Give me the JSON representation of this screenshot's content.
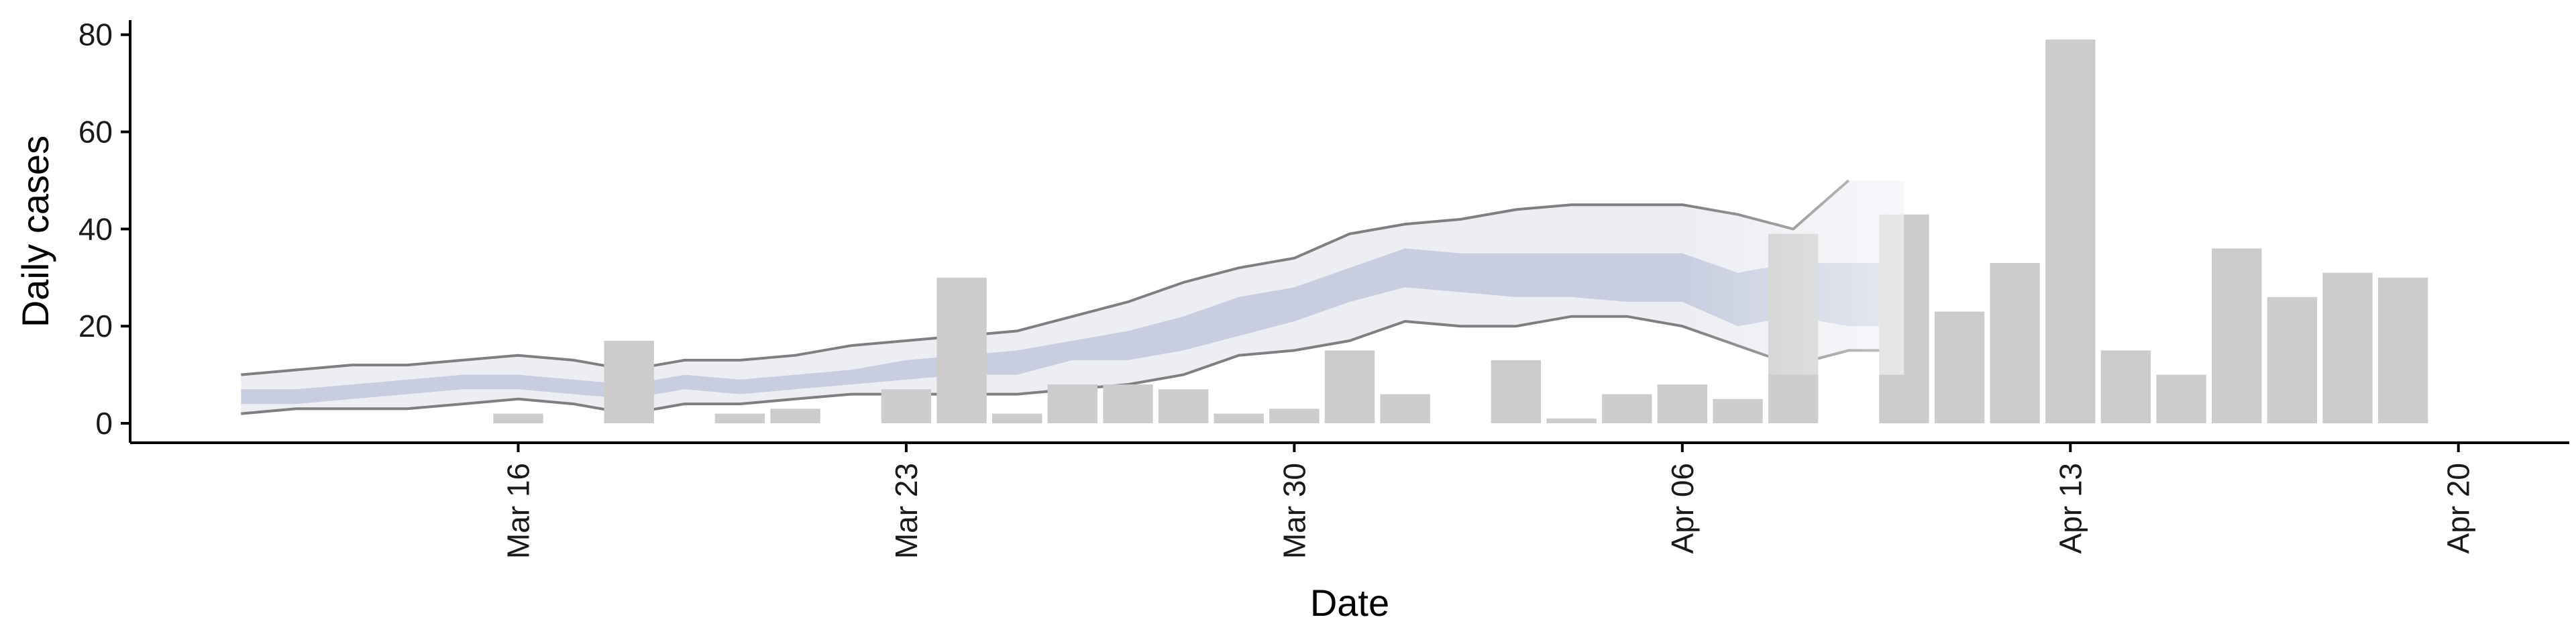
{
  "chart_data": {
    "type": "bar",
    "title": "",
    "xlabel": "Date",
    "ylabel": "Daily cases",
    "ylim": [
      -4,
      83
    ],
    "xlim": [
      "2020-03-09",
      "2020-04-22"
    ],
    "grid": false,
    "legend": "none",
    "y_ticks": [
      0,
      20,
      40,
      60,
      80
    ],
    "x_ticks": [
      {
        "date": "2020-03-16",
        "label": "Mar 16"
      },
      {
        "date": "2020-03-23",
        "label": "Mar 23"
      },
      {
        "date": "2020-03-30",
        "label": "Mar 30"
      },
      {
        "date": "2020-04-06",
        "label": "Apr 06"
      },
      {
        "date": "2020-04-13",
        "label": "Apr 13"
      },
      {
        "date": "2020-04-20",
        "label": "Apr 20"
      }
    ],
    "colors": {
      "bars": "#cccccc",
      "band_outer": "#e6e8f0",
      "band_inner": "#bcc3da",
      "band_edge": "#7f7f7f"
    },
    "bars": [
      {
        "date": "2020-03-16",
        "value": 2
      },
      {
        "date": "2020-03-18",
        "value": 17
      },
      {
        "date": "2020-03-20",
        "value": 2
      },
      {
        "date": "2020-03-21",
        "value": 3
      },
      {
        "date": "2020-03-23",
        "value": 7
      },
      {
        "date": "2020-03-24",
        "value": 30
      },
      {
        "date": "2020-03-25",
        "value": 2
      },
      {
        "date": "2020-03-26",
        "value": 8
      },
      {
        "date": "2020-03-27",
        "value": 8
      },
      {
        "date": "2020-03-28",
        "value": 7
      },
      {
        "date": "2020-03-29",
        "value": 2
      },
      {
        "date": "2020-03-30",
        "value": 3
      },
      {
        "date": "2020-03-31",
        "value": 15
      },
      {
        "date": "2020-04-01",
        "value": 6
      },
      {
        "date": "2020-04-03",
        "value": 13
      },
      {
        "date": "2020-04-04",
        "value": 1
      },
      {
        "date": "2020-04-05",
        "value": 6
      },
      {
        "date": "2020-04-06",
        "value": 8
      },
      {
        "date": "2020-04-07",
        "value": 5
      },
      {
        "date": "2020-04-08",
        "value": 39
      },
      {
        "date": "2020-04-10",
        "value": 43
      },
      {
        "date": "2020-04-11",
        "value": 23
      },
      {
        "date": "2020-04-12",
        "value": 33
      },
      {
        "date": "2020-04-13",
        "value": 79
      },
      {
        "date": "2020-04-14",
        "value": 15
      },
      {
        "date": "2020-04-15",
        "value": 10
      },
      {
        "date": "2020-04-16",
        "value": 36
      },
      {
        "date": "2020-04-17",
        "value": 26
      },
      {
        "date": "2020-04-18",
        "value": 31
      },
      {
        "date": "2020-04-19",
        "value": 30
      }
    ],
    "band": {
      "x": [
        "2020-03-11",
        "2020-03-12",
        "2020-03-13",
        "2020-03-14",
        "2020-03-15",
        "2020-03-16",
        "2020-03-17",
        "2020-03-18",
        "2020-03-19",
        "2020-03-20",
        "2020-03-21",
        "2020-03-22",
        "2020-03-23",
        "2020-03-24",
        "2020-03-25",
        "2020-03-26",
        "2020-03-27",
        "2020-03-28",
        "2020-03-29",
        "2020-03-30",
        "2020-03-31",
        "2020-04-01",
        "2020-04-02",
        "2020-04-03",
        "2020-04-04",
        "2020-04-05",
        "2020-04-06",
        "2020-04-07",
        "2020-04-08",
        "2020-04-09",
        "2020-04-10"
      ],
      "outer_upper": [
        10,
        11,
        12,
        12,
        13,
        14,
        13,
        11,
        13,
        13,
        14,
        16,
        17,
        18,
        19,
        22,
        25,
        29,
        32,
        34,
        39,
        41,
        42,
        44,
        45,
        45,
        45,
        43,
        40,
        50,
        50
      ],
      "outer_lower": [
        2,
        3,
        3,
        3,
        4,
        5,
        4,
        2,
        4,
        4,
        5,
        6,
        6,
        6,
        6,
        7,
        8,
        10,
        14,
        15,
        17,
        21,
        20,
        20,
        22,
        22,
        20,
        16,
        12,
        15,
        15
      ],
      "inner_upper": [
        7,
        7,
        8,
        9,
        10,
        10,
        9,
        8,
        10,
        9,
        10,
        11,
        13,
        14,
        15,
        17,
        19,
        22,
        26,
        28,
        32,
        36,
        35,
        35,
        35,
        35,
        35,
        31,
        33,
        33,
        33
      ],
      "inner_lower": [
        4,
        4,
        5,
        6,
        7,
        7,
        6,
        5,
        7,
        6,
        7,
        8,
        9,
        10,
        10,
        13,
        13,
        15,
        18,
        21,
        25,
        28,
        27,
        26,
        26,
        25,
        25,
        20,
        22,
        20,
        20
      ],
      "outer_upper_line_end": "2020-04-09"
    }
  }
}
